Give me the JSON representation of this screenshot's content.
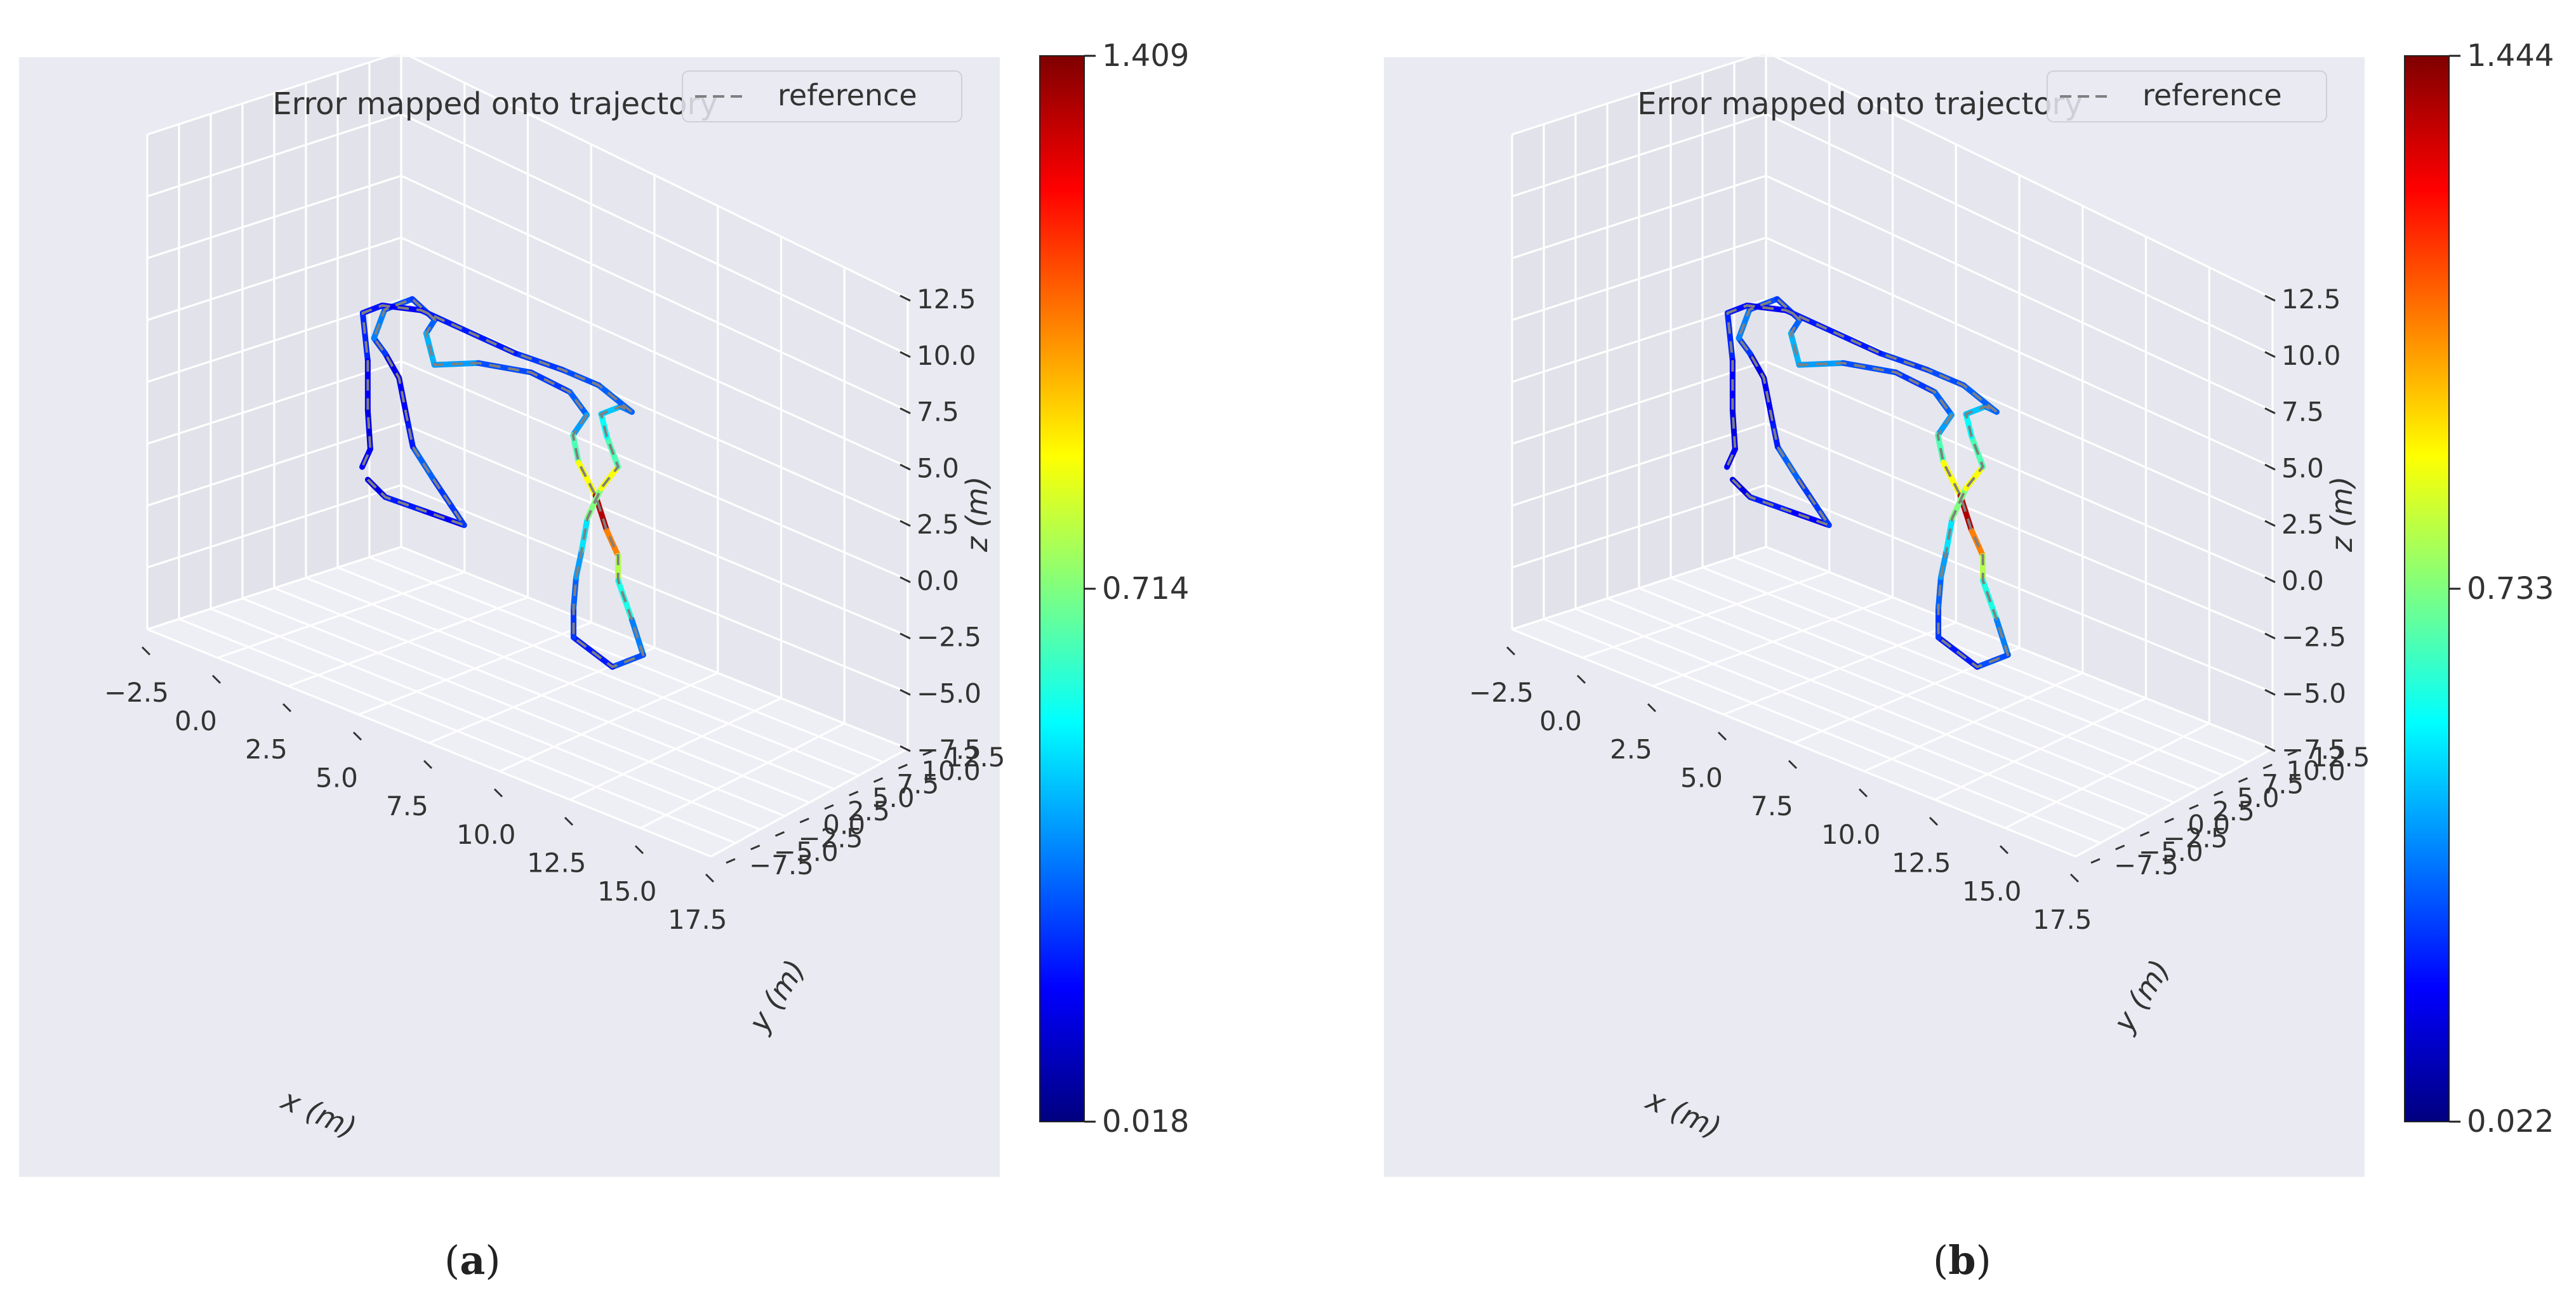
{
  "chart_data": [
    {
      "type": "line3d",
      "panel_label": "a",
      "title": "Error mapped onto trajectory",
      "legend": {
        "entries": [
          "reference"
        ],
        "placement": "top-right"
      },
      "xlabel": "x (m)",
      "ylabel": "y (m)",
      "zlabel": "z (m)",
      "x_ticks": [
        "−2.5",
        "0.0",
        "2.5",
        "5.0",
        "7.5",
        "10.0",
        "12.5",
        "15.0",
        "17.5"
      ],
      "y_ticks": [
        "−7.5",
        "−5.0",
        "−2.5",
        "0.0",
        "2.5",
        "5.0",
        "7.5",
        "10.0",
        "12.5"
      ],
      "z_ticks": [
        "−7.5",
        "−5.0",
        "−2.5",
        "0.0",
        "2.5",
        "5.0",
        "7.5",
        "10.0",
        "12.5"
      ],
      "xlim": [
        -2.5,
        17.5
      ],
      "ylim": [
        -7.5,
        12.5
      ],
      "zlim": [
        -7.5,
        12.5
      ],
      "grid": true,
      "colorbar": {
        "colormap": "jet",
        "min": 0.018,
        "max": 1.409,
        "tick_labels": [
          "1.409",
          "0.714",
          "0.018"
        ]
      }
    },
    {
      "type": "line3d",
      "panel_label": "b",
      "title": "Error mapped onto trajectory",
      "legend": {
        "entries": [
          "reference"
        ],
        "placement": "top-right"
      },
      "xlabel": "x (m)",
      "ylabel": "y (m)",
      "zlabel": "z (m)",
      "x_ticks": [
        "−2.5",
        "0.0",
        "2.5",
        "5.0",
        "7.5",
        "10.0",
        "12.5",
        "15.0",
        "17.5"
      ],
      "y_ticks": [
        "−7.5",
        "−5.0",
        "−2.5",
        "0.0",
        "2.5",
        "5.0",
        "7.5",
        "10.0",
        "12.5"
      ],
      "z_ticks": [
        "−7.5",
        "−5.0",
        "−2.5",
        "0.0",
        "2.5",
        "5.0",
        "7.5",
        "10.0",
        "12.5"
      ],
      "xlim": [
        -2.5,
        17.5
      ],
      "ylim": [
        -7.5,
        12.5
      ],
      "zlim": [
        -7.5,
        12.5
      ],
      "grid": true,
      "colorbar": {
        "colormap": "jet",
        "min": 0.022,
        "max": 1.444,
        "tick_labels": [
          "1.444",
          "0.733",
          "0.022"
        ]
      }
    }
  ],
  "colors": {
    "axes_background": "#eaeaf2",
    "grid": "#ffffff",
    "reference_line": "#808080",
    "trajectory": "#1a3fb0"
  }
}
